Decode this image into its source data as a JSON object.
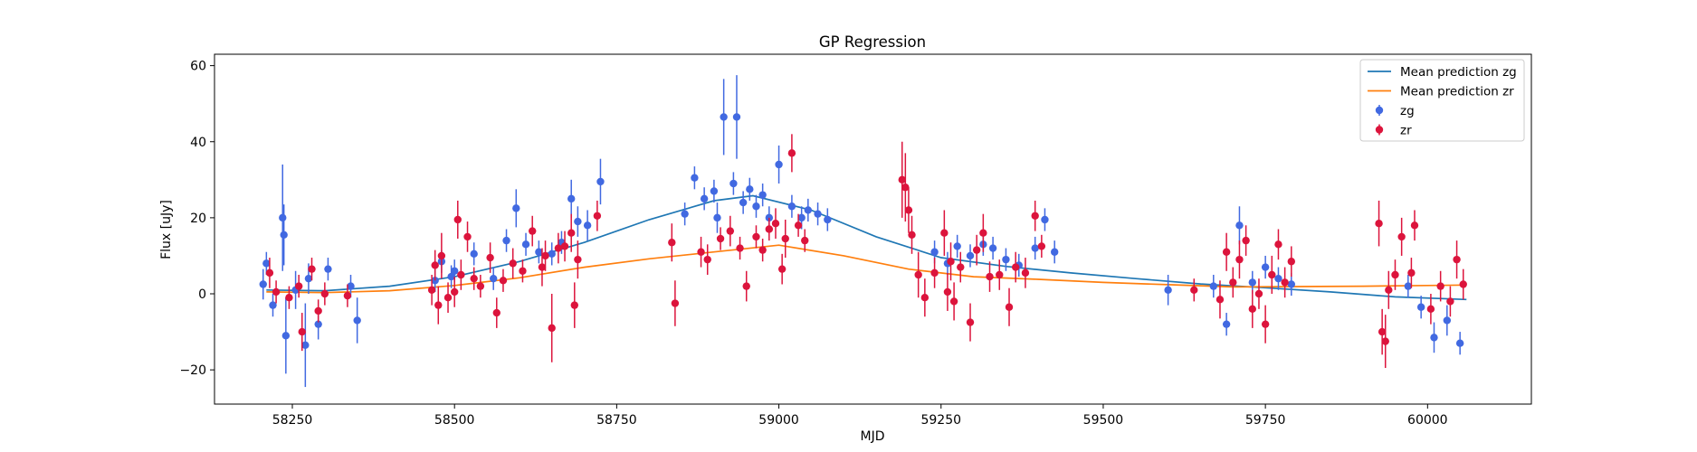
{
  "chart_data": {
    "type": "scatter",
    "title": "GP Regression",
    "xlabel": "MJD",
    "ylabel": "Flux [uJy]",
    "xlim": [
      58130,
      60160
    ],
    "ylim": [
      -29,
      63
    ],
    "xticks": [
      58250,
      58500,
      58750,
      59000,
      59250,
      59500,
      59750,
      60000
    ],
    "xtick_labels": [
      "58250",
      "58500",
      "58750",
      "59000",
      "59250",
      "59500",
      "59750",
      "60000"
    ],
    "yticks": [
      -20,
      0,
      20,
      40,
      60
    ],
    "ytick_labels": [
      "−20",
      "0",
      "20",
      "40",
      "60"
    ],
    "grid": false,
    "legend_position": "top-right",
    "legend": [
      {
        "label": "Mean prediction zg",
        "kind": "line",
        "color": "#1f77b4"
      },
      {
        "label": "Mean prediction zr",
        "kind": "line",
        "color": "#ff7f0e"
      },
      {
        "label": "zg",
        "kind": "errorbar",
        "color": "#4169e1"
      },
      {
        "label": "zr",
        "kind": "errorbar",
        "color": "#dc143c"
      }
    ],
    "lines": [
      {
        "name": "Mean prediction zg",
        "color": "#1f77b4",
        "x": [
          58210,
          58300,
          58400,
          58500,
          58600,
          58700,
          58800,
          58900,
          58960,
          59050,
          59150,
          59250,
          59350,
          59450,
          59550,
          59650,
          59750,
          59850,
          59950,
          60060
        ],
        "y": [
          1.0,
          0.8,
          2.0,
          4.5,
          8.5,
          13.5,
          19.5,
          24.5,
          25.8,
          22.0,
          15.0,
          9.5,
          7.2,
          5.5,
          4.0,
          2.6,
          1.6,
          0.5,
          -0.8,
          -1.5
        ]
      },
      {
        "name": "Mean prediction zr",
        "color": "#ff7f0e",
        "x": [
          58210,
          58300,
          58400,
          58500,
          58600,
          58700,
          58800,
          58900,
          59000,
          59100,
          59200,
          59300,
          59400,
          59500,
          59600,
          59700,
          59800,
          59900,
          60000,
          60060
        ],
        "y": [
          0.5,
          0.3,
          0.8,
          2.2,
          4.2,
          7.0,
          9.2,
          11.0,
          12.8,
          10.0,
          6.5,
          4.5,
          3.8,
          3.0,
          2.4,
          1.8,
          1.9,
          2.0,
          2.2,
          2.3
        ]
      }
    ],
    "series": [
      {
        "name": "zg",
        "color": "#4169e1",
        "x": [
          58205,
          58210,
          58220,
          58235,
          58237,
          58240,
          58255,
          58270,
          58275,
          58290,
          58305,
          58340,
          58350,
          58470,
          58480,
          58495,
          58500,
          58530,
          58560,
          58580,
          58595,
          58610,
          58630,
          58650,
          58665,
          58680,
          58690,
          58705,
          58725,
          58855,
          58870,
          58885,
          58900,
          58905,
          58915,
          58930,
          58935,
          58945,
          58955,
          58965,
          58975,
          58985,
          59000,
          59020,
          59035,
          59045,
          59060,
          59075,
          59240,
          59260,
          59275,
          59295,
          59315,
          59330,
          59350,
          59370,
          59395,
          59410,
          59425,
          59600,
          59670,
          59690,
          59710,
          59730,
          59750,
          59770,
          59790,
          59970,
          59990,
          60010,
          60030,
          60050
        ],
        "y": [
          2.5,
          8.0,
          -3.0,
          20.0,
          15.5,
          -11.0,
          1.0,
          -13.5,
          4.0,
          -8.0,
          6.5,
          2.0,
          -7.0,
          3.5,
          8.5,
          4.5,
          6.0,
          10.5,
          4.0,
          14.0,
          22.5,
          13.0,
          11.0,
          10.5,
          13.5,
          25.0,
          19.0,
          18.0,
          29.5,
          21.0,
          30.5,
          25.0,
          27.0,
          20.0,
          46.5,
          29.0,
          46.5,
          24.0,
          27.5,
          23.0,
          26.0,
          20.0,
          34.0,
          23.0,
          20.0,
          22.0,
          21.0,
          19.5,
          11.0,
          8.0,
          12.5,
          10.0,
          13.0,
          12.0,
          9.0,
          7.5,
          12.0,
          19.5,
          11.0,
          1.0,
          2.0,
          -8.0,
          18.0,
          3.0,
          7.0,
          4.0,
          2.5,
          2.0,
          -3.5,
          -11.5,
          -7.0,
          -13.0
        ],
        "err": [
          4,
          3,
          3,
          14,
          8,
          10,
          5,
          11,
          4,
          4,
          3,
          3,
          6,
          3,
          3,
          3,
          3,
          3,
          3,
          3,
          5,
          3,
          3,
          3,
          3,
          5,
          4,
          4,
          6,
          3,
          3,
          3,
          3,
          4,
          10,
          3,
          11,
          3,
          3,
          3,
          3,
          3,
          5,
          3,
          3,
          3,
          3,
          3,
          3,
          3,
          3,
          3,
          3,
          3,
          3,
          3,
          3,
          3,
          3,
          4,
          3,
          3,
          5,
          3,
          3,
          3,
          3,
          3,
          3,
          4,
          4,
          3
        ]
      },
      {
        "name": "zr",
        "color": "#dc143c",
        "x": [
          58215,
          58225,
          58245,
          58260,
          58265,
          58280,
          58290,
          58300,
          58335,
          58465,
          58470,
          58475,
          58480,
          58490,
          58500,
          58505,
          58510,
          58520,
          58530,
          58540,
          58555,
          58565,
          58575,
          58590,
          58605,
          58620,
          58635,
          58640,
          58650,
          58660,
          58670,
          58680,
          58685,
          58690,
          58720,
          58835,
          58840,
          58880,
          58890,
          58910,
          58925,
          58940,
          58950,
          58965,
          58975,
          58985,
          58995,
          59005,
          59010,
          59020,
          59030,
          59040,
          59190,
          59195,
          59200,
          59205,
          59215,
          59225,
          59240,
          59255,
          59260,
          59265,
          59270,
          59280,
          59295,
          59305,
          59315,
          59325,
          59340,
          59355,
          59365,
          59380,
          59395,
          59405,
          59640,
          59680,
          59690,
          59700,
          59710,
          59720,
          59730,
          59740,
          59750,
          59760,
          59770,
          59780,
          59790,
          59925,
          59930,
          59935,
          59940,
          59950,
          59960,
          59975,
          59980,
          60005,
          60020,
          60035,
          60045,
          60055
        ],
        "y": [
          5.5,
          0.5,
          -1.0,
          2.0,
          -10.0,
          6.5,
          -4.5,
          0.0,
          -0.5,
          1.0,
          7.5,
          -3.0,
          10.0,
          -1.0,
          0.5,
          19.5,
          5.0,
          15.0,
          4.0,
          2.0,
          9.5,
          -5.0,
          3.5,
          8.0,
          6.0,
          16.5,
          7.0,
          10.0,
          -9.0,
          12.0,
          12.5,
          16.0,
          -3.0,
          9.0,
          20.5,
          13.5,
          -2.5,
          11.0,
          9.0,
          14.5,
          16.5,
          12.0,
          2.0,
          15.0,
          11.5,
          17.0,
          18.5,
          6.5,
          14.5,
          37.0,
          18.0,
          14.0,
          30.0,
          28.0,
          22.0,
          15.5,
          5.0,
          -1.0,
          5.5,
          16.0,
          0.5,
          8.5,
          -2.0,
          7.0,
          -7.5,
          11.5,
          16.0,
          4.5,
          5.0,
          -3.5,
          7.0,
          5.5,
          20.5,
          12.5,
          1.0,
          -1.5,
          11.0,
          3.0,
          9.0,
          14.0,
          -4.0,
          0.0,
          -8.0,
          5.0,
          13.0,
          3.0,
          8.5,
          18.5,
          -10.0,
          -12.5,
          1.0,
          5.0,
          15.0,
          5.5,
          18.0,
          -4.0,
          2.0,
          -2.0,
          9.0,
          2.5
        ],
        "err": [
          4,
          3,
          3,
          3,
          5,
          3,
          3,
          3,
          3,
          4,
          4,
          5,
          6,
          4,
          4,
          5,
          4,
          4,
          3,
          3,
          4,
          4,
          3,
          4,
          3,
          4,
          5,
          4,
          9,
          4,
          4,
          5,
          6,
          5,
          4,
          5,
          6,
          4,
          4,
          3,
          4,
          3,
          4,
          3,
          3,
          3,
          4,
          4,
          5,
          5,
          3,
          3,
          10,
          9,
          6,
          5,
          6,
          5,
          4,
          6,
          5,
          5,
          5,
          4,
          5,
          4,
          5,
          4,
          4,
          5,
          4,
          4,
          4,
          3,
          3,
          5,
          5,
          4,
          5,
          4,
          5,
          4,
          5,
          5,
          4,
          4,
          4,
          6,
          6,
          7,
          5,
          4,
          5,
          4,
          4,
          4,
          4,
          4,
          5,
          4
        ]
      }
    ]
  }
}
